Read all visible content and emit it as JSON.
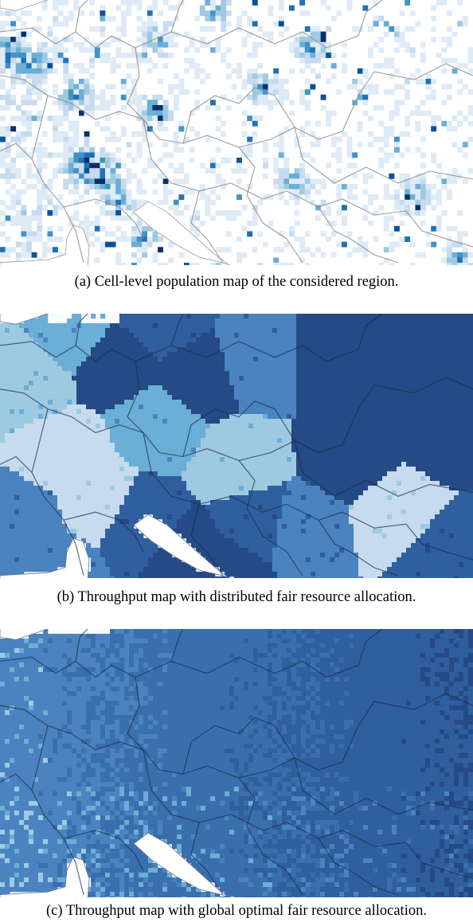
{
  "figure": {
    "panels": [
      {
        "id": "a",
        "caption": "(a) Cell-level population map of the considered region.",
        "palette": [
          "#f7fbff",
          "#deebf7",
          "#c6dbef",
          "#9ecae1",
          "#6baed6",
          "#4292c6",
          "#2171b5",
          "#08519c",
          "#08306b"
        ]
      },
      {
        "id": "b",
        "caption": "(b) Throughput map with distributed fair resource allocation.",
        "palette": [
          "#c6dbef",
          "#9ecae1",
          "#6baed6",
          "#4a83c0",
          "#2f5f9e",
          "#254a85"
        ]
      },
      {
        "id": "c",
        "caption": "(c) Throughput map with global optimal fair resource allocation.",
        "palette": [
          "#9ecae1",
          "#6baed6",
          "#4a83c0",
          "#3a6fae",
          "#2f5f9e",
          "#254a85"
        ]
      }
    ],
    "colors": {
      "sea": "#f7fbff",
      "border_line": "#8a8a8a",
      "border_line_dark": "#1a2c4a"
    }
  }
}
